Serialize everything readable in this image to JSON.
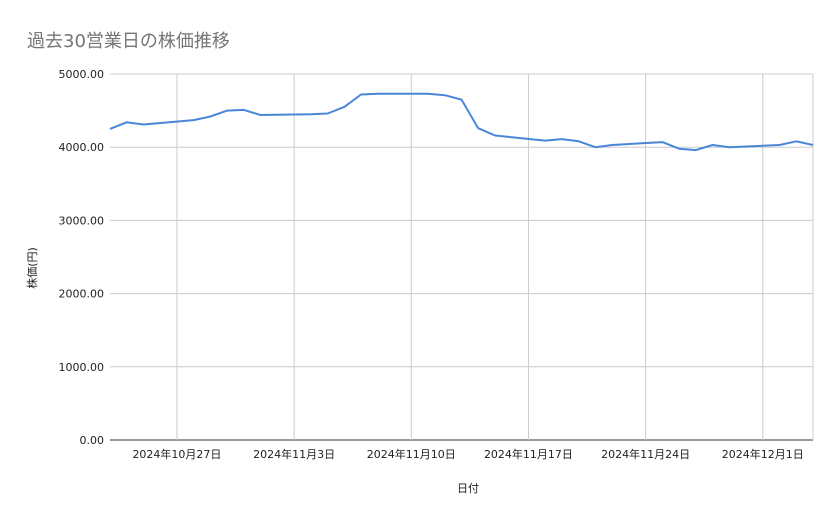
{
  "chart_data": {
    "type": "line",
    "title": "過去30営業日の株価推移",
    "xlabel": "日付",
    "ylabel": "株価(円)",
    "ylim": [
      0,
      5000
    ],
    "xlim": [
      "2024-10-23",
      "2024-12-04"
    ],
    "grid": true,
    "legend": "none",
    "line_color": "#4a86d8",
    "y_ticks": [
      {
        "value": 0,
        "label": "0.00"
      },
      {
        "value": 1000,
        "label": "1000.00"
      },
      {
        "value": 2000,
        "label": "2000.00"
      },
      {
        "value": 3000,
        "label": "3000.00"
      },
      {
        "value": 4000,
        "label": "4000.00"
      },
      {
        "value": 5000,
        "label": "5000.00"
      }
    ],
    "x_ticks": [
      {
        "value": "2024-10-27",
        "label": "2024年10月27日"
      },
      {
        "value": "2024-11-03",
        "label": "2024年11月3日"
      },
      {
        "value": "2024-11-10",
        "label": "2024年11月10日"
      },
      {
        "value": "2024-11-17",
        "label": "2024年11月17日"
      },
      {
        "value": "2024-11-24",
        "label": "2024年11月24日"
      },
      {
        "value": "2024-12-01",
        "label": "2024年12月1日"
      }
    ],
    "x": [
      "2024-10-23",
      "2024-10-24",
      "2024-10-25",
      "2024-10-28",
      "2024-10-29",
      "2024-10-30",
      "2024-10-31",
      "2024-11-01",
      "2024-11-04",
      "2024-11-05",
      "2024-11-06",
      "2024-11-07",
      "2024-11-08",
      "2024-11-11",
      "2024-11-12",
      "2024-11-13",
      "2024-11-14",
      "2024-11-15",
      "2024-11-18",
      "2024-11-19",
      "2024-11-20",
      "2024-11-21",
      "2024-11-22",
      "2024-11-25",
      "2024-11-26",
      "2024-11-27",
      "2024-11-28",
      "2024-11-29",
      "2024-12-02",
      "2024-12-03",
      "2024-12-04"
    ],
    "values": [
      4250,
      4340,
      4310,
      4370,
      4420,
      4500,
      4510,
      4440,
      4450,
      4460,
      4550,
      4720,
      4730,
      4730,
      4710,
      4650,
      4260,
      4160,
      4090,
      4110,
      4080,
      4000,
      4030,
      4070,
      3980,
      3960,
      4030,
      4000,
      4030,
      4080,
      4030
    ]
  }
}
